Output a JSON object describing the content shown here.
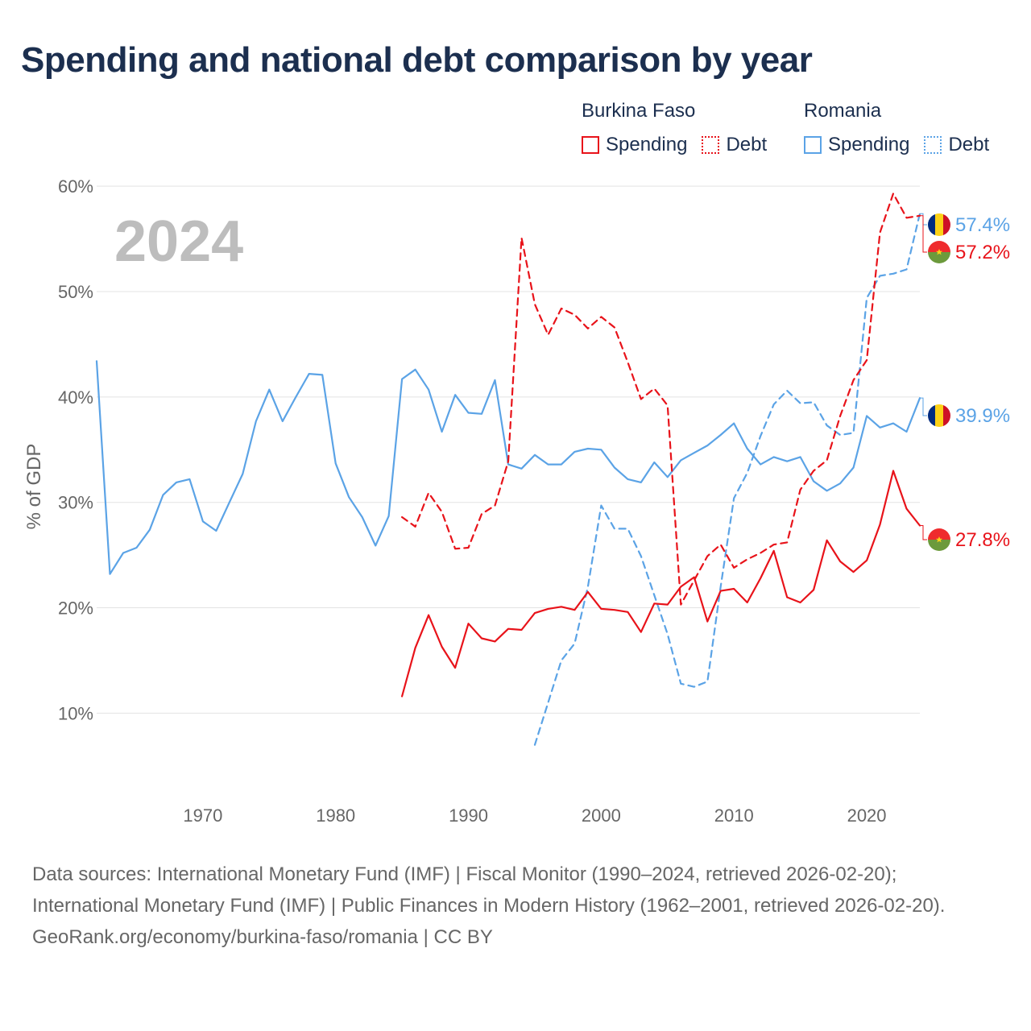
{
  "title": "Spending and national debt comparison by year",
  "legend": {
    "groups": [
      {
        "name": "Burkina Faso",
        "color": "#e8131a",
        "items": [
          {
            "label": "Spending",
            "style": "solid"
          },
          {
            "label": "Debt",
            "style": "dotted"
          }
        ]
      },
      {
        "name": "Romania",
        "color": "#5ba3e6",
        "items": [
          {
            "label": "Spending",
            "style": "solid"
          },
          {
            "label": "Debt",
            "style": "dotted"
          }
        ]
      }
    ]
  },
  "year_label": "2024",
  "footer": {
    "sources": "Data sources: International Monetary Fund (IMF) | Fiscal Monitor (1990–2024, retrieved 2026-02-20); International Monetary Fund (IMF) | Public Finances in Modern History (1962–2001, retrieved 2026-02-20).",
    "credit": "GeoRank.org/economy/burkina-faso/romania | CC BY"
  },
  "chart_data": {
    "type": "line",
    "title": "Spending and national debt comparison by year",
    "xlabel": "",
    "ylabel": "% of GDP",
    "xlim": [
      1961.5,
      2024.5
    ],
    "ylim": [
      3,
      62
    ],
    "x_ticks": [
      1970,
      1980,
      1990,
      2000,
      2010,
      2020
    ],
    "y_ticks": [
      10,
      20,
      30,
      40,
      50,
      60
    ],
    "y_tick_labels": [
      "10%",
      "20%",
      "30%",
      "40%",
      "50%",
      "60%"
    ],
    "grid": true,
    "series": [
      {
        "name": "Romania Spending",
        "country": "Romania",
        "indicator": "Spending",
        "color": "#5ba3e6",
        "style": "solid",
        "start_year": 1962,
        "values": [
          43.4,
          23.2,
          25.2,
          25.7,
          27.4,
          30.7,
          31.9,
          32.2,
          28.2,
          27.3,
          30.0,
          32.7,
          37.7,
          40.7,
          37.7,
          40.0,
          42.2,
          42.1,
          33.7,
          30.5,
          28.6,
          25.9,
          28.7,
          41.7,
          42.6,
          40.7,
          36.7,
          40.2,
          38.5,
          38.4,
          41.6,
          33.6,
          33.2,
          34.5,
          33.6,
          33.6,
          34.8,
          35.1,
          35.0,
          33.3,
          32.2,
          31.9,
          33.8,
          32.4,
          34.0,
          34.7,
          35.4,
          36.4,
          37.5,
          35.1,
          33.6,
          34.3,
          33.9,
          34.3,
          32.0,
          31.1,
          31.8,
          33.3,
          38.2,
          37.1,
          37.5,
          36.7,
          39.9
        ]
      },
      {
        "name": "Romania Debt",
        "country": "Romania",
        "indicator": "Debt",
        "color": "#5ba3e6",
        "style": "dashed",
        "start_year": 1995,
        "values": [
          7.0,
          11.0,
          15.0,
          16.6,
          22.0,
          29.7,
          27.5,
          27.5,
          24.9,
          21.2,
          17.5,
          12.8,
          12.5,
          13.0,
          22.0,
          30.4,
          32.8,
          36.3,
          39.3,
          40.6,
          39.4,
          39.5,
          37.3,
          36.4,
          36.6,
          49.4,
          51.5,
          51.7,
          52.1,
          57.4
        ]
      },
      {
        "name": "Burkina Faso Spending",
        "country": "Burkina Faso",
        "indicator": "Spending",
        "color": "#e8131a",
        "style": "solid",
        "start_year": 1985,
        "values": [
          11.6,
          16.2,
          19.3,
          16.3,
          14.3,
          18.5,
          17.1,
          16.8,
          18.0,
          17.9,
          19.5,
          19.9,
          20.1,
          19.8,
          21.5,
          19.9,
          19.8,
          19.6,
          17.7,
          20.4,
          20.3,
          22.0,
          22.9,
          18.7,
          21.6,
          21.8,
          20.5,
          22.8,
          25.4,
          21.0,
          20.5,
          21.7,
          26.4,
          24.4,
          23.4,
          24.5,
          27.9,
          33.0,
          29.4,
          27.8
        ]
      },
      {
        "name": "Burkina Faso Debt",
        "country": "Burkina Faso",
        "indicator": "Debt",
        "color": "#e8131a",
        "style": "dashed",
        "start_year": 1985,
        "values": [
          28.6,
          27.7,
          30.9,
          29.1,
          25.6,
          25.7,
          28.9,
          29.7,
          33.9,
          55.1,
          48.8,
          45.9,
          48.4,
          47.8,
          46.5,
          47.6,
          46.6,
          43.3,
          39.8,
          40.8,
          39.2,
          20.3,
          22.6,
          24.9,
          26.0,
          23.8,
          24.6,
          25.2,
          26.0,
          26.2,
          31.2,
          33.0,
          34.0,
          38.2,
          41.6,
          43.5,
          55.6,
          59.3,
          57.0,
          57.2
        ]
      }
    ],
    "end_labels": [
      {
        "series": "Romania Debt",
        "country": "Romania",
        "label": "57.4%",
        "color": "#5ba3e6"
      },
      {
        "series": "Burkina Faso Debt",
        "country": "Burkina Faso",
        "label": "57.2%",
        "color": "#e8131a"
      },
      {
        "series": "Romania Spending",
        "country": "Romania",
        "label": "39.9%",
        "color": "#5ba3e6"
      },
      {
        "series": "Burkina Faso Spending",
        "country": "Burkina Faso",
        "label": "27.8%",
        "color": "#e8131a"
      }
    ]
  },
  "colors": {
    "title": "#1c2f4f",
    "axis_text": "#666666",
    "grid": "#e3e3e3",
    "year_watermark": "#bdbdbd",
    "burkina_red": "#e8131a",
    "romania_blue": "#5ba3e6"
  }
}
